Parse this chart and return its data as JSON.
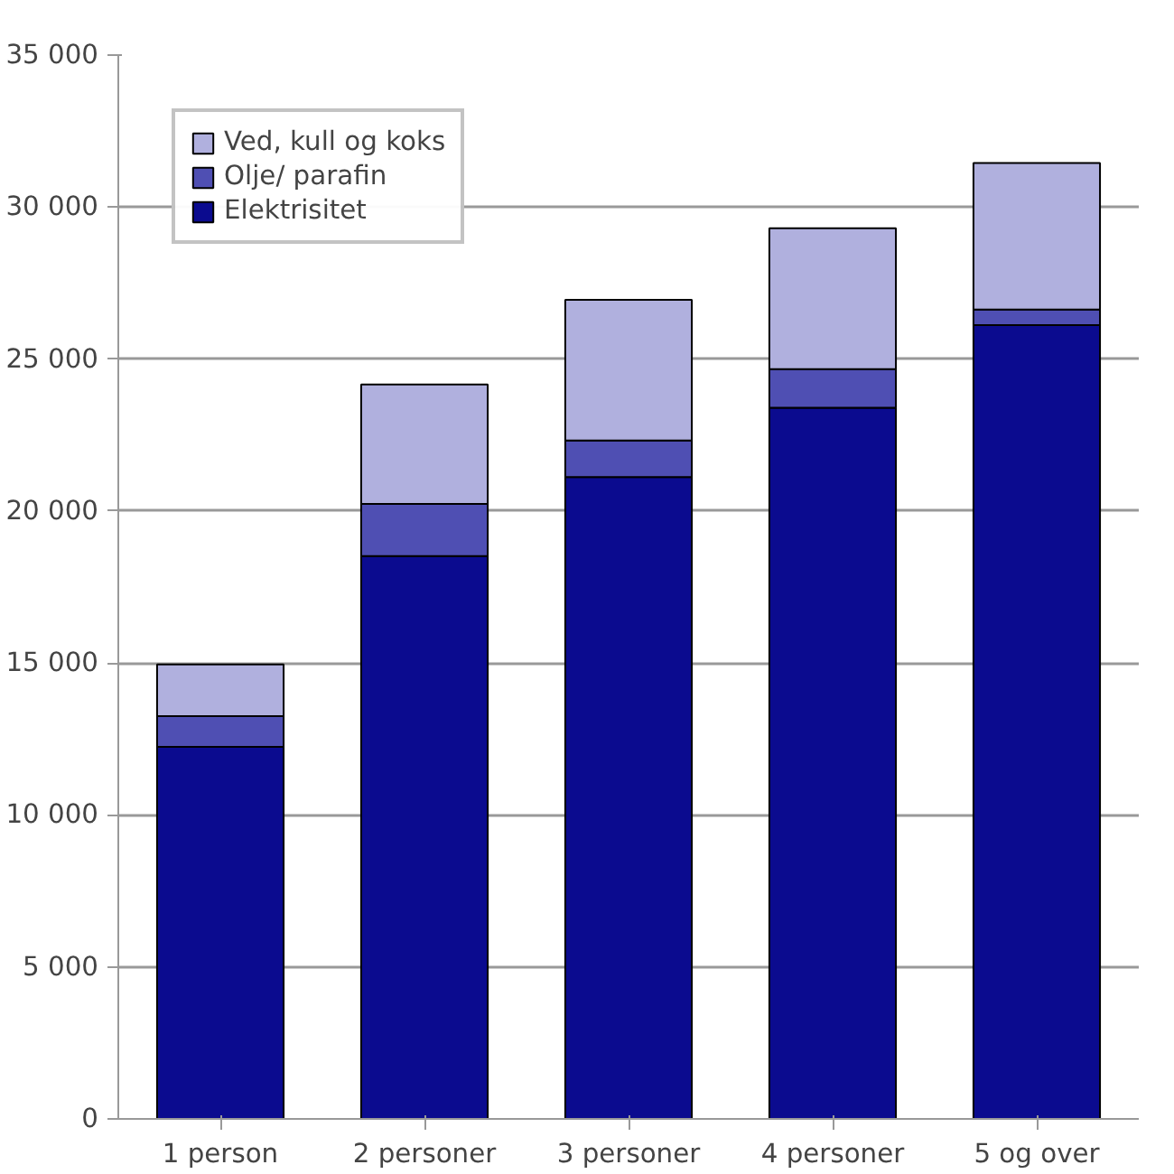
{
  "chart_data": {
    "type": "bar",
    "stacked": true,
    "categories": [
      "1 person",
      "2 personer",
      "3 personer",
      "4 personer",
      "5 og over"
    ],
    "series": [
      {
        "name": "Elektrisitet",
        "color": "#0b0b8f",
        "values": [
          12240,
          18520,
          21120,
          23400,
          26120
        ]
      },
      {
        "name": "Olje/ parafin",
        "color": "#4f4fb3",
        "values": [
          1010,
          1710,
          1200,
          1270,
          510
        ]
      },
      {
        "name": "Ved, kull og koks",
        "color": "#b0b0de",
        "values": [
          1700,
          3930,
          4630,
          4630,
          4820
        ]
      }
    ],
    "ylim": [
      0,
      35000
    ],
    "yticks": [
      {
        "value": 0,
        "label": "0"
      },
      {
        "value": 5000,
        "label": "5 000"
      },
      {
        "value": 10000,
        "label": "10 000"
      },
      {
        "value": 15000,
        "label": "15 000"
      },
      {
        "value": 20000,
        "label": "20 000"
      },
      {
        "value": 25000,
        "label": "25 000"
      },
      {
        "value": 30000,
        "label": "30 000"
      },
      {
        "value": 35000,
        "label": "35 000"
      }
    ],
    "grid": "y",
    "legend": "top left"
  }
}
